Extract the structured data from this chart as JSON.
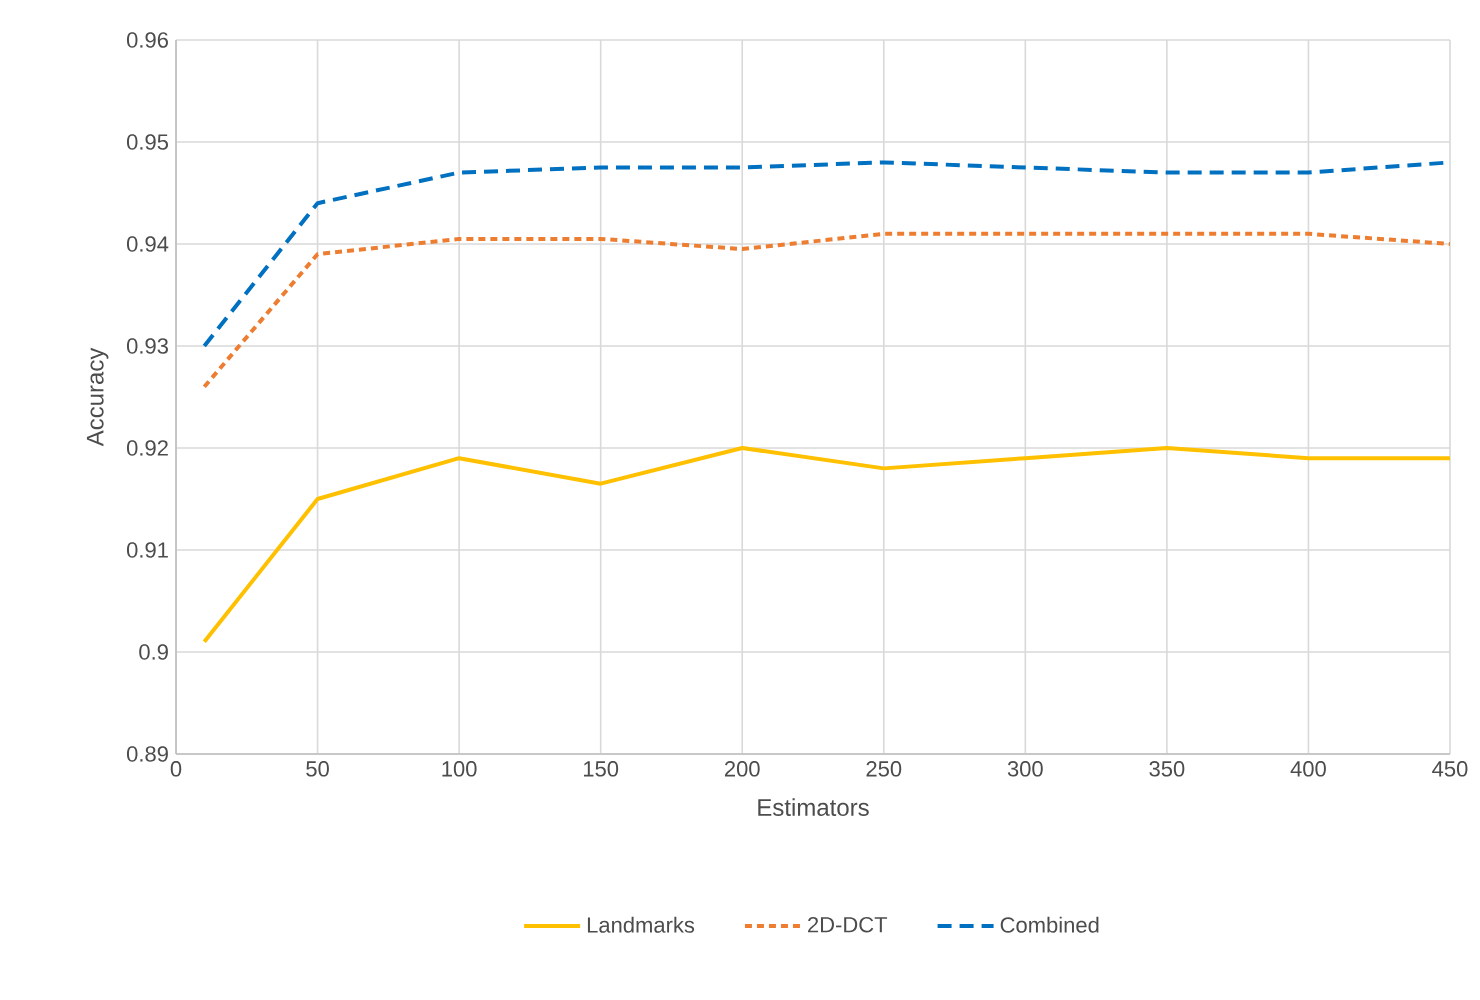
{
  "chart_data": {
    "type": "line",
    "xlabel": "Estimators",
    "ylabel": "Accuracy",
    "x": [
      10,
      50,
      100,
      150,
      200,
      250,
      300,
      350,
      400,
      450
    ],
    "series": [
      {
        "name": "Landmarks",
        "color": "#ffc000",
        "line_style": "solid",
        "values": [
          0.901,
          0.915,
          0.919,
          0.9165,
          0.92,
          0.918,
          0.919,
          0.92,
          0.919,
          0.919
        ]
      },
      {
        "name": "2D-DCT",
        "color": "#ed7d31",
        "line_style": "dotted",
        "values": [
          0.926,
          0.939,
          0.9405,
          0.9405,
          0.9395,
          0.941,
          0.941,
          0.941,
          0.941,
          0.94
        ]
      },
      {
        "name": "Combined",
        "color": "#0070c0",
        "line_style": "dashed",
        "values": [
          0.93,
          0.944,
          0.947,
          0.9475,
          0.9475,
          0.948,
          0.9475,
          0.947,
          0.947,
          0.948
        ]
      }
    ],
    "xlim": [
      0,
      450
    ],
    "xticks": [
      0,
      50,
      100,
      150,
      200,
      250,
      300,
      350,
      400,
      450
    ],
    "ylim": [
      0.89,
      0.96
    ],
    "yticks": [
      0.89,
      0.9,
      0.91,
      0.92,
      0.93,
      0.94,
      0.95,
      0.96
    ],
    "grid": true,
    "legend": "bottom",
    "marker": "none"
  }
}
